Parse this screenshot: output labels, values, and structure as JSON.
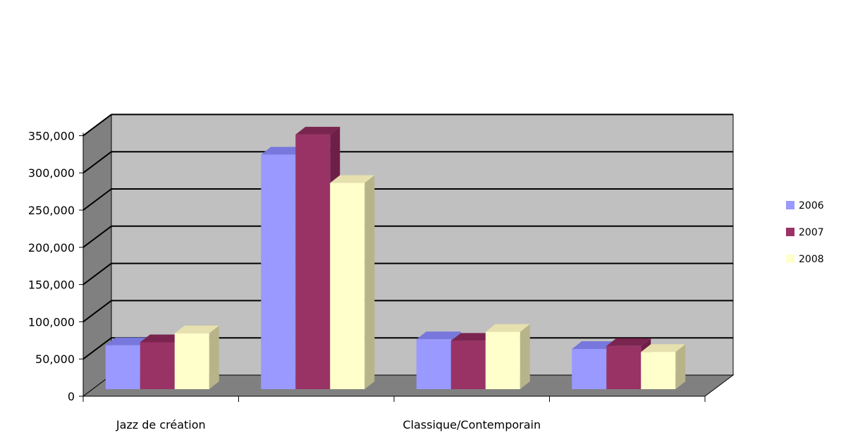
{
  "chart_data": {
    "type": "bar",
    "categories": [
      "Jazz de création",
      "",
      "Classique/Contemporain",
      ""
    ],
    "series": [
      {
        "name": "2006",
        "values": [
          59000,
          315000,
          67000,
          54000
        ],
        "color": "#9999ff",
        "top": "#7777dd",
        "side": "#7a7ad0"
      },
      {
        "name": "2007",
        "values": [
          63000,
          342000,
          65000,
          58000
        ],
        "color": "#993366",
        "top": "#7a2550",
        "side": "#6e1f48"
      },
      {
        "name": "2008",
        "values": [
          75000,
          277000,
          77000,
          50000
        ],
        "color": "#ffffcc",
        "top": "#e6e0ae",
        "side": "#b8b48a"
      }
    ],
    "y_ticks": [
      "0",
      "50,000",
      "100,000",
      "150,000",
      "200,000",
      "250,000",
      "300,000",
      "350,000"
    ],
    "ylim": [
      0,
      350000
    ],
    "title": "",
    "xlabel": "",
    "ylabel": "",
    "grid": true,
    "legend_position": "right",
    "wall_color": "#c0c0c0",
    "side_wall_color": "#808080",
    "floor_color": "#808080"
  }
}
